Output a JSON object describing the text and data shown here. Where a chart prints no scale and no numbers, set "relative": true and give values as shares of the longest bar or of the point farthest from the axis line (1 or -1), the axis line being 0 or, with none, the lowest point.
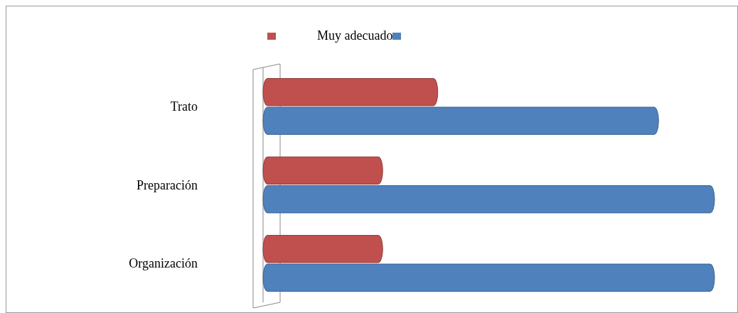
{
  "chart_data": {
    "type": "bar",
    "orientation": "horizontal",
    "relative": true,
    "legend": "top",
    "categories": [
      "Trato",
      "Preparación",
      "Organización"
    ],
    "series": [
      {
        "name": "Muy adecuado",
        "color": "#c0504d",
        "values": [
          0.387,
          0.265,
          0.265
        ]
      },
      {
        "color": "#4f81bd",
        "values": [
          0.876,
          1,
          1
        ]
      }
    ]
  }
}
